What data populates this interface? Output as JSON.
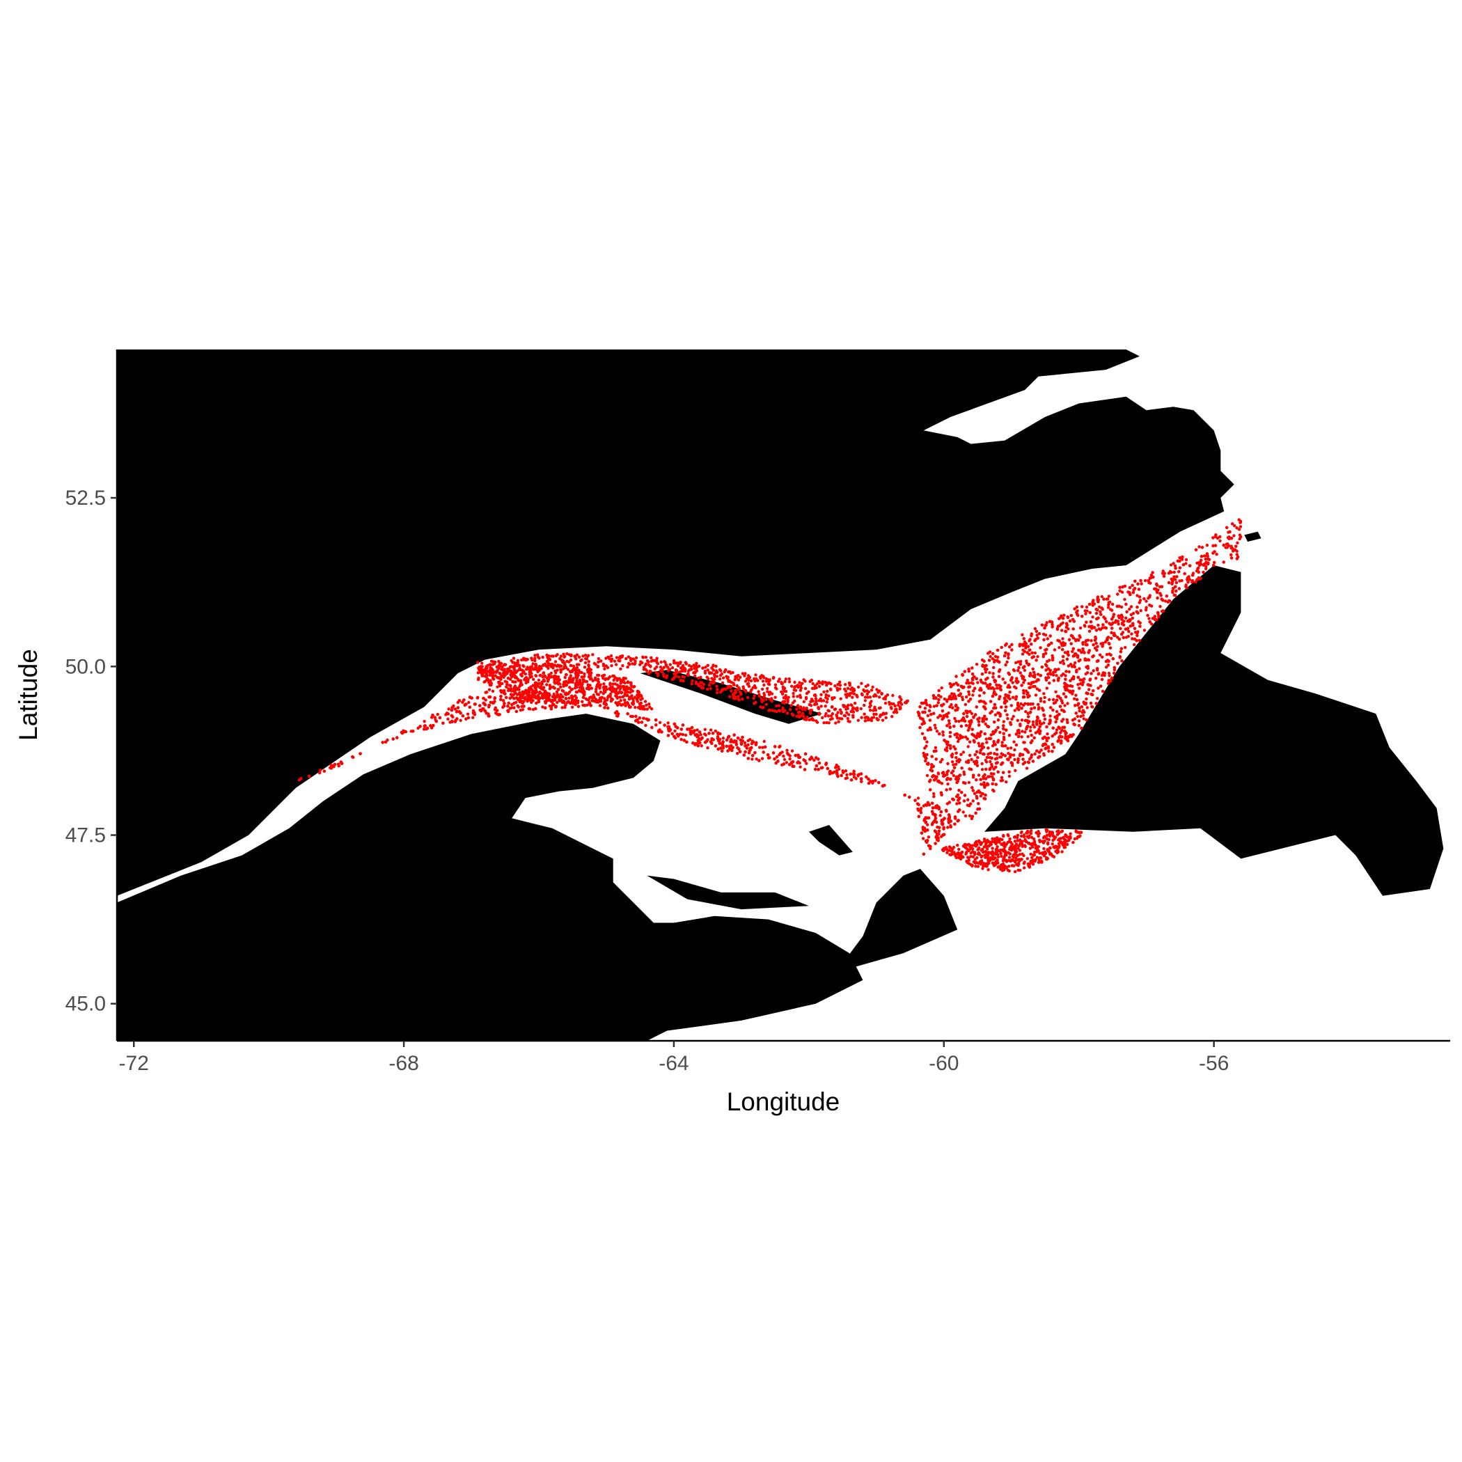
{
  "chart_data": {
    "type": "scatter",
    "subtype": "map",
    "title": "",
    "xlabel": "Longitude",
    "ylabel": "Latitude",
    "xlim": [
      -72.25,
      -52.5
    ],
    "ylim": [
      44.45,
      54.7
    ],
    "x_ticks": [
      {
        "value": -72,
        "label": "-72"
      },
      {
        "value": -68,
        "label": "-68"
      },
      {
        "value": -64,
        "label": "-64"
      },
      {
        "value": -60,
        "label": "-60"
      },
      {
        "value": -56,
        "label": "-56"
      }
    ],
    "y_ticks": [
      {
        "value": 45.0,
        "label": "45.0"
      },
      {
        "value": 47.5,
        "label": "47.5"
      },
      {
        "value": 50.0,
        "label": "50.0"
      },
      {
        "value": 52.5,
        "label": "52.5"
      }
    ],
    "grid": false,
    "legend": "none",
    "land_color": "#000000",
    "point_color": "#ff0000",
    "background": "#ffffff",
    "land": [
      {
        "name": "mainland-north",
        "coords": [
          [
            -72.25,
            54.7
          ],
          [
            -57.3,
            54.7
          ],
          [
            -57.1,
            54.6
          ],
          [
            -57.6,
            54.4
          ],
          [
            -58.6,
            54.3
          ],
          [
            -58.8,
            54.1
          ],
          [
            -59.9,
            53.7
          ],
          [
            -60.3,
            53.5
          ],
          [
            -59.8,
            53.4
          ],
          [
            -59.6,
            53.3
          ],
          [
            -59.1,
            53.35
          ],
          [
            -58.5,
            53.7
          ],
          [
            -58.0,
            53.9
          ],
          [
            -57.3,
            54.0
          ],
          [
            -57.0,
            53.8
          ],
          [
            -56.6,
            53.85
          ],
          [
            -56.3,
            53.8
          ],
          [
            -56.0,
            53.5
          ],
          [
            -55.9,
            53.2
          ],
          [
            -55.9,
            52.9
          ],
          [
            -55.7,
            52.7
          ],
          [
            -55.9,
            52.5
          ],
          [
            -55.85,
            52.3
          ],
          [
            -56.5,
            52.0
          ],
          [
            -57.3,
            51.5
          ],
          [
            -57.8,
            51.45
          ],
          [
            -58.5,
            51.3
          ],
          [
            -59.0,
            51.1
          ],
          [
            -59.6,
            50.85
          ],
          [
            -60.2,
            50.4
          ],
          [
            -61.0,
            50.25
          ],
          [
            -62.0,
            50.2
          ],
          [
            -63.0,
            50.15
          ],
          [
            -64.0,
            50.25
          ],
          [
            -65.0,
            50.3
          ],
          [
            -66.0,
            50.25
          ],
          [
            -66.8,
            50.1
          ],
          [
            -67.2,
            49.9
          ],
          [
            -67.7,
            49.4
          ],
          [
            -68.5,
            48.95
          ],
          [
            -69.6,
            48.2
          ],
          [
            -70.3,
            47.5
          ],
          [
            -71.0,
            47.1
          ],
          [
            -72.25,
            46.6
          ]
        ]
      },
      {
        "name": "gaspe-new-brunswick-nova-scotia",
        "coords": [
          [
            -72.25,
            46.5
          ],
          [
            -71.3,
            46.9
          ],
          [
            -70.4,
            47.2
          ],
          [
            -69.7,
            47.6
          ],
          [
            -69.2,
            48.0
          ],
          [
            -68.6,
            48.4
          ],
          [
            -67.9,
            48.7
          ],
          [
            -67.0,
            49.0
          ],
          [
            -66.0,
            49.2
          ],
          [
            -65.3,
            49.3
          ],
          [
            -64.6,
            49.15
          ],
          [
            -64.2,
            48.9
          ],
          [
            -64.3,
            48.6
          ],
          [
            -64.6,
            48.35
          ],
          [
            -65.2,
            48.2
          ],
          [
            -65.7,
            48.15
          ],
          [
            -66.2,
            48.05
          ],
          [
            -66.4,
            47.75
          ],
          [
            -65.8,
            47.6
          ],
          [
            -65.2,
            47.3
          ],
          [
            -64.9,
            47.15
          ],
          [
            -64.9,
            46.8
          ],
          [
            -64.6,
            46.5
          ],
          [
            -64.3,
            46.2
          ],
          [
            -64.0,
            46.2
          ],
          [
            -63.4,
            46.3
          ],
          [
            -62.6,
            46.25
          ],
          [
            -61.9,
            46.05
          ],
          [
            -61.4,
            45.75
          ],
          [
            -61.2,
            45.35
          ],
          [
            -61.9,
            45.0
          ],
          [
            -63.0,
            44.75
          ],
          [
            -64.1,
            44.6
          ],
          [
            -64.4,
            44.45
          ],
          [
            -72.25,
            44.45
          ]
        ]
      },
      {
        "name": "anticosti",
        "coords": [
          [
            -64.5,
            49.9
          ],
          [
            -63.6,
            49.6
          ],
          [
            -62.8,
            49.3
          ],
          [
            -62.3,
            49.15
          ],
          [
            -61.8,
            49.3
          ],
          [
            -62.5,
            49.5
          ],
          [
            -63.3,
            49.75
          ],
          [
            -64.1,
            49.95
          ]
        ]
      },
      {
        "name": "newfoundland",
        "coords": [
          [
            -59.4,
            47.55
          ],
          [
            -59.1,
            47.9
          ],
          [
            -58.9,
            48.3
          ],
          [
            -58.2,
            48.7
          ],
          [
            -58.0,
            49.0
          ],
          [
            -57.7,
            49.5
          ],
          [
            -57.4,
            50.0
          ],
          [
            -57.0,
            50.5
          ],
          [
            -56.6,
            51.0
          ],
          [
            -56.0,
            51.5
          ],
          [
            -55.6,
            51.4
          ],
          [
            -55.6,
            50.8
          ],
          [
            -55.9,
            50.2
          ],
          [
            -55.2,
            49.8
          ],
          [
            -54.5,
            49.6
          ],
          [
            -53.6,
            49.3
          ],
          [
            -53.4,
            48.8
          ],
          [
            -53.0,
            48.3
          ],
          [
            -52.7,
            47.9
          ],
          [
            -52.6,
            47.3
          ],
          [
            -52.8,
            46.7
          ],
          [
            -53.5,
            46.6
          ],
          [
            -53.9,
            47.2
          ],
          [
            -54.2,
            47.5
          ],
          [
            -55.0,
            47.3
          ],
          [
            -55.6,
            47.15
          ],
          [
            -56.2,
            47.6
          ],
          [
            -57.2,
            47.55
          ],
          [
            -58.5,
            47.6
          ]
        ]
      },
      {
        "name": "prince-edward-island",
        "coords": [
          [
            -64.4,
            46.9
          ],
          [
            -63.8,
            46.55
          ],
          [
            -63.0,
            46.4
          ],
          [
            -62.0,
            46.45
          ],
          [
            -62.5,
            46.65
          ],
          [
            -63.3,
            46.65
          ],
          [
            -64.0,
            46.85
          ]
        ]
      },
      {
        "name": "cape-breton",
        "coords": [
          [
            -61.5,
            45.6
          ],
          [
            -61.2,
            46.0
          ],
          [
            -61.0,
            46.5
          ],
          [
            -60.6,
            46.9
          ],
          [
            -60.35,
            47.0
          ],
          [
            -60.0,
            46.6
          ],
          [
            -59.8,
            46.1
          ],
          [
            -60.6,
            45.75
          ],
          [
            -61.3,
            45.55
          ]
        ]
      },
      {
        "name": "magdalen-islands",
        "coords": [
          [
            -62.0,
            47.55
          ],
          [
            -61.7,
            47.65
          ],
          [
            -61.35,
            47.25
          ],
          [
            -61.55,
            47.2
          ],
          [
            -61.85,
            47.4
          ]
        ]
      },
      {
        "name": "belle-isle",
        "coords": [
          [
            -55.55,
            51.95
          ],
          [
            -55.35,
            52.0
          ],
          [
            -55.3,
            51.9
          ],
          [
            -55.5,
            51.85
          ]
        ]
      }
    ],
    "points_density": [
      {
        "polygon": [
          [
            -69.5,
            48.35
          ],
          [
            -68.6,
            48.75
          ],
          [
            -67.4,
            49.15
          ],
          [
            -66.2,
            49.35
          ],
          [
            -65.2,
            49.4
          ],
          [
            -64.3,
            49.05
          ],
          [
            -63.3,
            48.7
          ],
          [
            -62.2,
            48.5
          ],
          [
            -61.3,
            48.3
          ],
          [
            -60.2,
            48.0
          ],
          [
            -59.7,
            47.8
          ],
          [
            -60.3,
            47.2
          ],
          [
            -60.4,
            48.0
          ],
          [
            -61.2,
            48.4
          ],
          [
            -62.4,
            48.85
          ],
          [
            -63.4,
            49.05
          ],
          [
            -64.5,
            49.25
          ],
          [
            -65.5,
            49.55
          ],
          [
            -66.5,
            49.75
          ],
          [
            -67.2,
            49.5
          ],
          [
            -68.0,
            49.05
          ],
          [
            -69.0,
            48.5
          ],
          [
            -69.6,
            48.3
          ]
        ],
        "count": 1500
      },
      {
        "polygon": [
          [
            -67.0,
            50.05
          ],
          [
            -65.8,
            50.2
          ],
          [
            -64.5,
            50.15
          ],
          [
            -63.5,
            50.05
          ],
          [
            -62.6,
            49.85
          ],
          [
            -62.0,
            49.8
          ],
          [
            -61.2,
            49.75
          ],
          [
            -60.5,
            49.5
          ],
          [
            -60.8,
            49.2
          ],
          [
            -61.8,
            49.15
          ],
          [
            -62.6,
            49.35
          ],
          [
            -63.8,
            49.75
          ],
          [
            -64.6,
            49.95
          ],
          [
            -66.0,
            49.95
          ],
          [
            -66.8,
            49.75
          ]
        ],
        "count": 900
      },
      {
        "polygon": [
          [
            -66.9,
            49.8
          ],
          [
            -66.2,
            49.45
          ],
          [
            -65.2,
            49.45
          ],
          [
            -64.3,
            49.35
          ],
          [
            -64.6,
            49.8
          ],
          [
            -65.8,
            50.05
          ],
          [
            -66.9,
            50.0
          ]
        ],
        "count": 700
      },
      {
        "polygon": [
          [
            -60.1,
            47.3
          ],
          [
            -59.6,
            47.4
          ],
          [
            -59.2,
            47.5
          ],
          [
            -58.5,
            47.6
          ],
          [
            -57.9,
            47.55
          ],
          [
            -58.3,
            47.2
          ],
          [
            -58.9,
            46.95
          ],
          [
            -59.5,
            47.0
          ]
        ],
        "count": 550
      },
      {
        "polygon": [
          [
            -60.4,
            49.4
          ],
          [
            -59.8,
            49.9
          ],
          [
            -59.2,
            50.3
          ],
          [
            -58.6,
            50.6
          ],
          [
            -57.8,
            51.0
          ],
          [
            -57.0,
            51.35
          ],
          [
            -56.2,
            51.8
          ],
          [
            -55.6,
            52.2
          ],
          [
            -55.6,
            51.6
          ],
          [
            -56.0,
            51.45
          ],
          [
            -56.6,
            51.0
          ],
          [
            -57.0,
            50.5
          ],
          [
            -57.4,
            50.0
          ],
          [
            -57.7,
            49.5
          ],
          [
            -58.0,
            49.0
          ],
          [
            -58.6,
            48.6
          ],
          [
            -59.3,
            48.1
          ],
          [
            -59.6,
            47.7
          ],
          [
            -60.2,
            48.1
          ],
          [
            -60.3,
            48.7
          ]
        ],
        "count": 2600
      }
    ]
  }
}
